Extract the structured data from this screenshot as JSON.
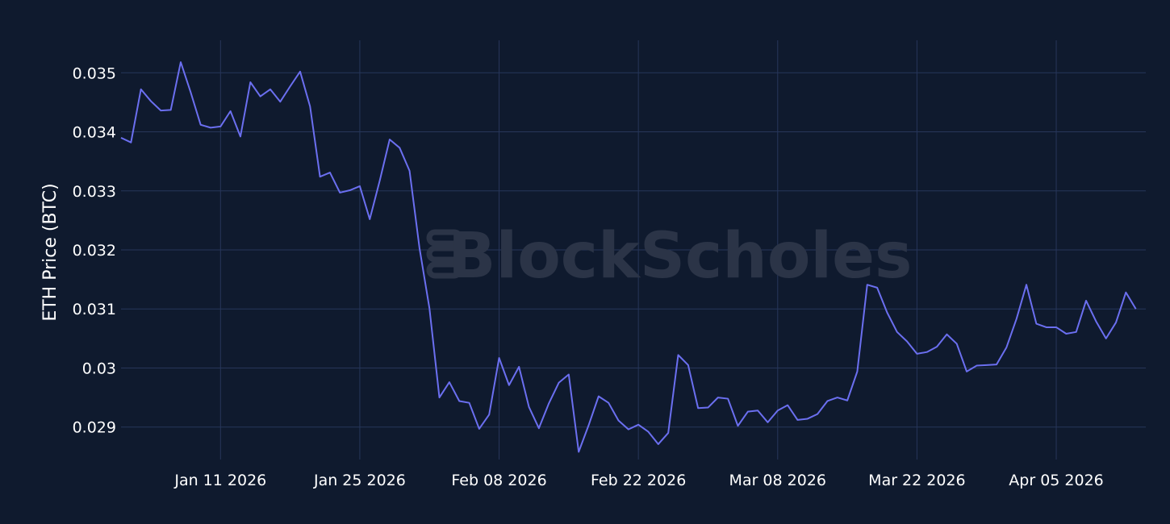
{
  "watermark": "BlockScholes",
  "chart_data": {
    "type": "line",
    "title": "",
    "xlabel": "",
    "ylabel": "ETH Price (BTC)",
    "xlim": [
      "2026-01-01",
      "2026-04-14"
    ],
    "ylim": [
      0.02845,
      0.03555
    ],
    "x_ticks": [
      {
        "date": "2026-01-11",
        "label": "Jan 11 2026"
      },
      {
        "date": "2026-01-25",
        "label": "Jan 25 2026"
      },
      {
        "date": "2026-02-08",
        "label": "Feb 08 2026"
      },
      {
        "date": "2026-02-22",
        "label": "Feb 22 2026"
      },
      {
        "date": "2026-03-08",
        "label": "Mar 08 2026"
      },
      {
        "date": "2026-03-22",
        "label": "Mar 22 2026"
      },
      {
        "date": "2026-04-05",
        "label": "Apr 05 2026"
      }
    ],
    "y_ticks": [
      {
        "value": 0.029,
        "label": "0.029"
      },
      {
        "value": 0.03,
        "label": "0.03"
      },
      {
        "value": 0.031,
        "label": "0.031"
      },
      {
        "value": 0.032,
        "label": "0.032"
      },
      {
        "value": 0.033,
        "label": "0.033"
      },
      {
        "value": 0.034,
        "label": "0.034"
      },
      {
        "value": 0.035,
        "label": "0.035"
      }
    ],
    "grid": true,
    "series": [
      {
        "color": "#6b6ff0",
        "start_date": "2026-01-01",
        "values": [
          0.0339,
          0.03382,
          0.03472,
          0.03452,
          0.03436,
          0.03437,
          0.03518,
          0.03467,
          0.03412,
          0.03407,
          0.03409,
          0.03435,
          0.03392,
          0.03484,
          0.0346,
          0.03472,
          0.03451,
          0.03477,
          0.03502,
          0.03443,
          0.03324,
          0.03331,
          0.03297,
          0.03301,
          0.03308,
          0.03252,
          0.03317,
          0.03387,
          0.03373,
          0.03334,
          0.03203,
          0.03101,
          0.0295,
          0.02976,
          0.02944,
          0.02941,
          0.02897,
          0.02921,
          0.03017,
          0.02971,
          0.03002,
          0.02934,
          0.02898,
          0.0294,
          0.02975,
          0.02989,
          0.02858,
          0.02903,
          0.02952,
          0.02941,
          0.02911,
          0.02896,
          0.02904,
          0.02892,
          0.02871,
          0.0289,
          0.03022,
          0.03005,
          0.02932,
          0.02933,
          0.0295,
          0.02948,
          0.02902,
          0.02926,
          0.02928,
          0.02908,
          0.02928,
          0.02937,
          0.02912,
          0.02914,
          0.02922,
          0.02944,
          0.0295,
          0.02945,
          0.02994,
          0.03141,
          0.03136,
          0.03094,
          0.03061,
          0.03045,
          0.03024,
          0.03027,
          0.03036,
          0.03057,
          0.03041,
          0.02994,
          0.03004,
          0.03005,
          0.03006,
          0.03035,
          0.03083,
          0.03141,
          0.03075,
          0.03069,
          0.03069,
          0.03058,
          0.03061,
          0.03114,
          0.03079,
          0.0305,
          0.03077,
          0.03128,
          0.031
        ]
      }
    ]
  }
}
